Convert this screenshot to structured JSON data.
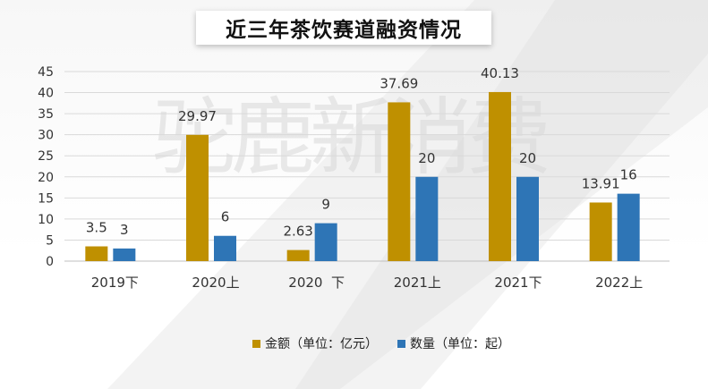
{
  "watermark": "驼鹿新消费",
  "chart_data": {
    "type": "bar",
    "title": "近三年茶饮赛道融资情况",
    "categories": [
      "2019下",
      "2020上",
      "2020  下",
      "2021上",
      "2021下",
      "2022上"
    ],
    "series": [
      {
        "name": "金额（单位：亿元）",
        "values": [
          3.5,
          29.97,
          2.63,
          37.69,
          40.13,
          13.91
        ],
        "labels": [
          "3.5",
          "29.97",
          "2.63",
          "37.69",
          "40.13",
          "13.91"
        ],
        "color": "#BF9000"
      },
      {
        "name": "数量（单位：起）",
        "values": [
          3,
          6,
          9,
          20,
          20,
          16
        ],
        "labels": [
          "3",
          "6",
          "9",
          "20",
          "20",
          "16"
        ],
        "color": "#2E75B6"
      }
    ],
    "ylim": [
      0,
      45
    ],
    "yticks": [
      0,
      5,
      10,
      15,
      20,
      25,
      30,
      35,
      40,
      45
    ],
    "grid": true,
    "legend_position": "bottom",
    "xlabel": "",
    "ylabel": ""
  }
}
